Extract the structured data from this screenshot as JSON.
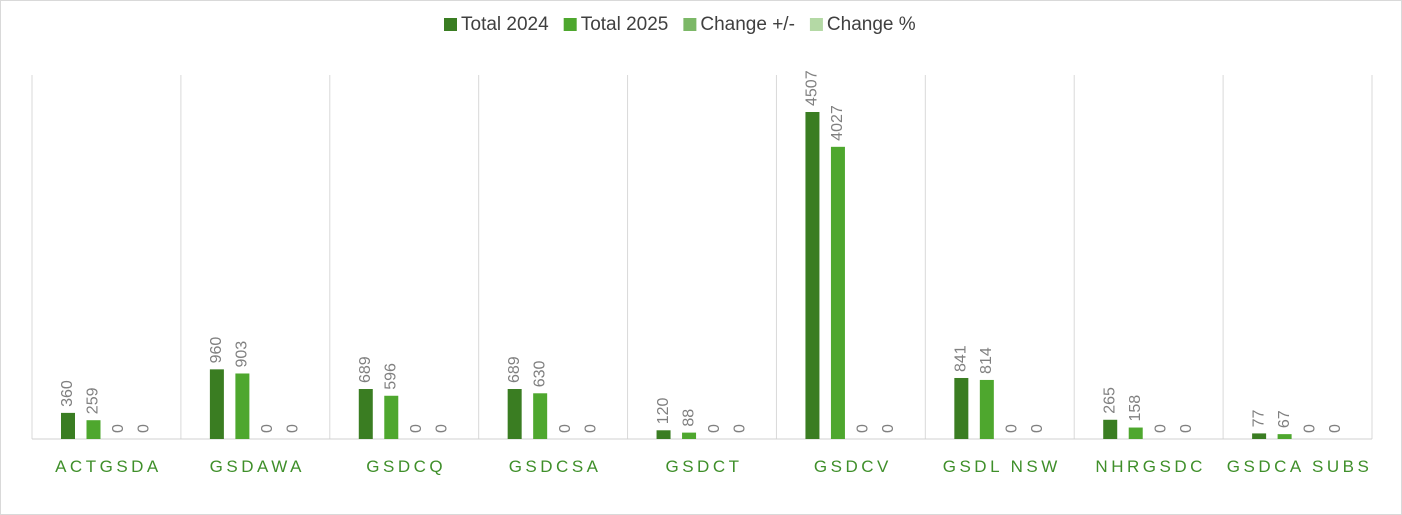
{
  "chart_data": {
    "type": "bar",
    "categories": [
      "ACTGSDA",
      "GSDAWA",
      "GSDCQ",
      "GSDCSA",
      "GSDCT",
      "GSDCV",
      "GSDL NSW",
      "NHRGSDC",
      "GSDCA SUBS"
    ],
    "series": [
      {
        "name": "Total 2024",
        "color": "#3a7d22",
        "values": [
          360,
          960,
          689,
          689,
          120,
          4507,
          841,
          265,
          77
        ]
      },
      {
        "name": "Total 2025",
        "color": "#4ea72e",
        "values": [
          259,
          903,
          596,
          630,
          88,
          4027,
          814,
          158,
          67
        ]
      },
      {
        "name": "Change +/-",
        "color": "#7cb867",
        "values": [
          0,
          0,
          0,
          0,
          0,
          0,
          0,
          0,
          0
        ]
      },
      {
        "name": "Change %",
        "color": "#b4d9a5",
        "values": [
          0,
          0,
          0,
          0,
          0,
          0,
          0,
          0,
          0
        ]
      }
    ],
    "legend": "top",
    "data_labels": true
  }
}
